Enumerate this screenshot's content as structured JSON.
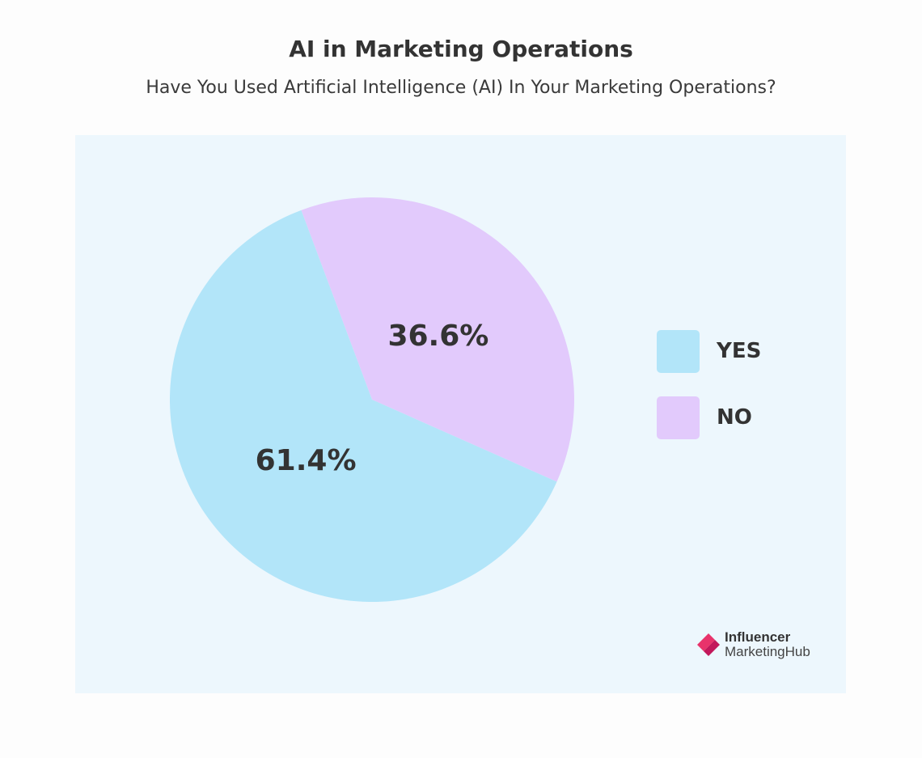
{
  "chart_data": {
    "type": "pie",
    "title": "AI in Marketing Operations",
    "subtitle": "Have You Used Artificial Intelligence (AI) In Your Marketing Operations?",
    "slices": [
      {
        "label": "NO",
        "value": 36.6,
        "display": "36.6%",
        "color": "#e2cafc"
      },
      {
        "label": "YES",
        "value": 61.4,
        "display": "61.4%",
        "color": "#b2e5f9"
      }
    ],
    "legend": [
      {
        "label": "YES",
        "color": "#b2e5f9"
      },
      {
        "label": "NO",
        "color": "#e2cafc"
      }
    ],
    "legend_placement": "right"
  },
  "colors": {
    "panel_background": "#edf7fd",
    "text": "#333333",
    "logo_accent": "#e8336b"
  },
  "logo": {
    "line1": "Influencer",
    "line2": "MarketingHub"
  }
}
